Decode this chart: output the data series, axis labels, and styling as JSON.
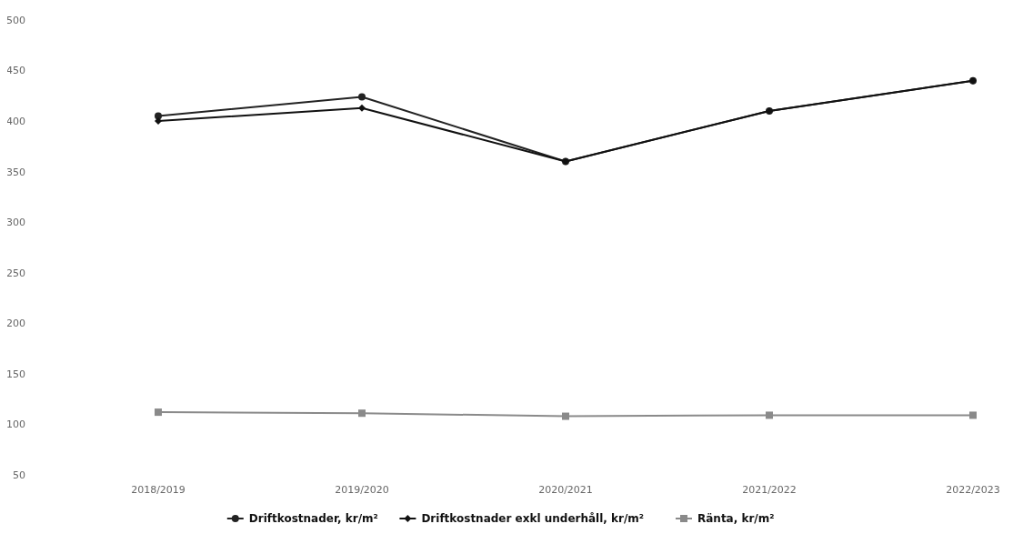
{
  "chart_data": {
    "type": "line",
    "categories": [
      "2018/2019",
      "2019/2020",
      "2020/2021",
      "2021/2022",
      "2022/2023"
    ],
    "series": [
      {
        "name": "Driftkostnader, kr/m²",
        "color": "#222222",
        "marker": "circle",
        "values": [
          405,
          424,
          360,
          410,
          440
        ]
      },
      {
        "name": "Driftkostnader exkl underhåll, kr/m²",
        "color": "#111111",
        "marker": "diamond",
        "values": [
          400,
          413,
          360,
          410,
          440
        ]
      },
      {
        "name": "Ränta, kr/m²",
        "color": "#8a8a8a",
        "marker": "square",
        "values": [
          112,
          111,
          108,
          109,
          109
        ]
      }
    ],
    "ylim": [
      50,
      500
    ],
    "yticks": [
      50,
      100,
      150,
      200,
      250,
      300,
      350,
      400,
      450,
      500
    ],
    "grid": false,
    "legend": "bottom",
    "line_style": "solid"
  }
}
